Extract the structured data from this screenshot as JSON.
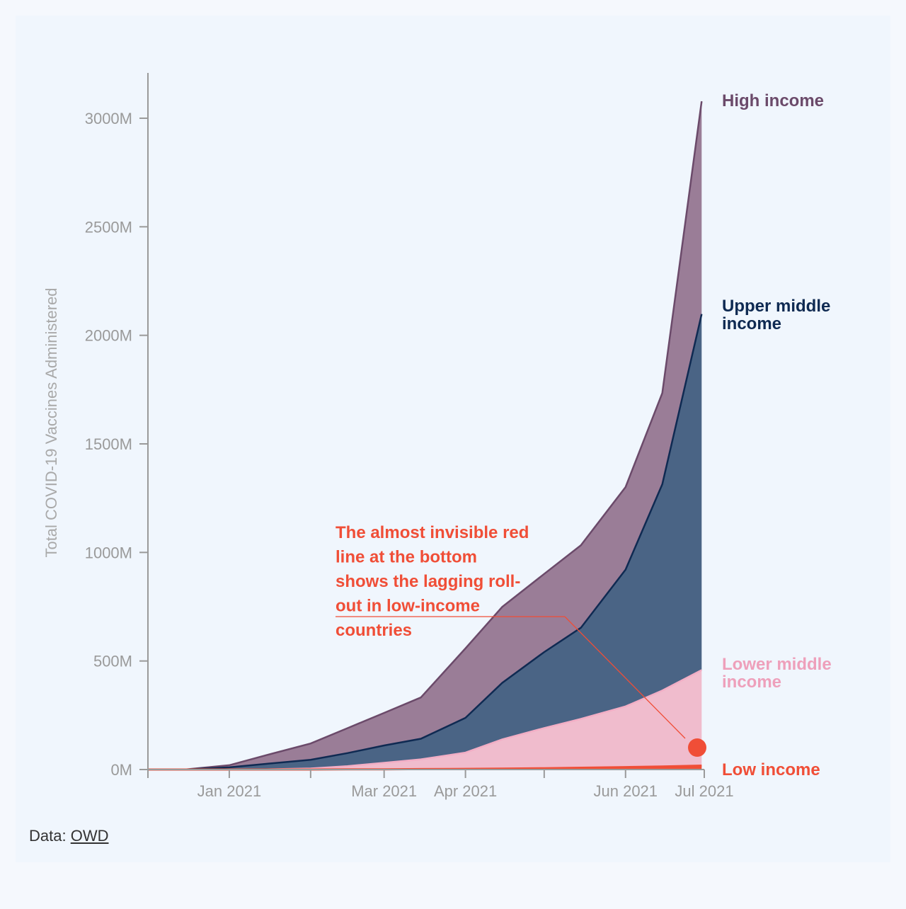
{
  "source": {
    "label": "Data:",
    "link_text": "OWD"
  },
  "annotation": {
    "lines": [
      "The almost invisible red",
      "line at the bottom",
      "shows the lagging roll-",
      "out in low-income",
      "countries"
    ]
  },
  "chart_data": {
    "type": "area",
    "stacked": true,
    "ylabel": "Total COVID-19 Vaccines Administered",
    "xlabel": "",
    "ylim": [
      0,
      3200
    ],
    "yunit": "M",
    "yticks": [
      0,
      500,
      1000,
      1500,
      2000,
      2500,
      3000
    ],
    "ytick_labels": [
      "0M",
      "500M",
      "1000M",
      "1500M",
      "2000M",
      "2500M",
      "3000M"
    ],
    "xlim": [
      "2020-12-01",
      "2021-07-01"
    ],
    "xticks": [
      "2020-12-01",
      "2021-01-01",
      "2021-02-01",
      "2021-03-01",
      "2021-04-01",
      "2021-05-01",
      "2021-06-01",
      "2021-07-01"
    ],
    "xtick_labels": [
      "",
      "Jan 2021",
      "",
      "Mar 2021",
      "Apr 2021",
      "",
      "Jun 2021",
      "Jul 2021"
    ],
    "x": [
      "2020-12-01",
      "2020-12-15",
      "2021-01-01",
      "2021-01-15",
      "2021-02-01",
      "2021-02-15",
      "2021-03-01",
      "2021-03-15",
      "2021-04-01",
      "2021-04-15",
      "2021-05-01",
      "2021-05-15",
      "2021-06-01",
      "2021-06-15",
      "2021-06-30"
    ],
    "series": [
      {
        "name": "Low income",
        "color": "#f04e37",
        "values": [
          0,
          0,
          0,
          0,
          0,
          0.5,
          1,
          2,
          3,
          4,
          6,
          8,
          11,
          14,
          18
        ]
      },
      {
        "name": "Lower middle income",
        "color": "#f0bccd",
        "values": [
          0,
          0,
          0,
          1,
          5,
          15,
          30,
          45,
          75,
          135,
          185,
          225,
          280,
          350,
          440
        ]
      },
      {
        "name": "Upper middle income",
        "color": "#4a6485",
        "values": [
          0,
          0,
          10,
          25,
          40,
          60,
          80,
          95,
          160,
          260,
          350,
          420,
          630,
          950,
          1640
        ]
      },
      {
        "name": "High income",
        "color": "#9a7d97",
        "values": [
          0,
          0,
          10,
          40,
          75,
          115,
          150,
          190,
          320,
          350,
          360,
          380,
          380,
          420,
          980
        ]
      }
    ],
    "end_labels": [
      {
        "series": "High income",
        "lines": [
          "High income"
        ],
        "color": "#6b4a6a"
      },
      {
        "series": "Upper middle income",
        "lines": [
          "Upper middle",
          "income"
        ],
        "color": "#0f2a52"
      },
      {
        "series": "Lower middle income",
        "lines": [
          "Lower middle",
          "income"
        ],
        "color": "#eea0bb"
      },
      {
        "series": "Low income",
        "lines": [
          "Low income"
        ],
        "color": "#f04e37"
      }
    ]
  }
}
